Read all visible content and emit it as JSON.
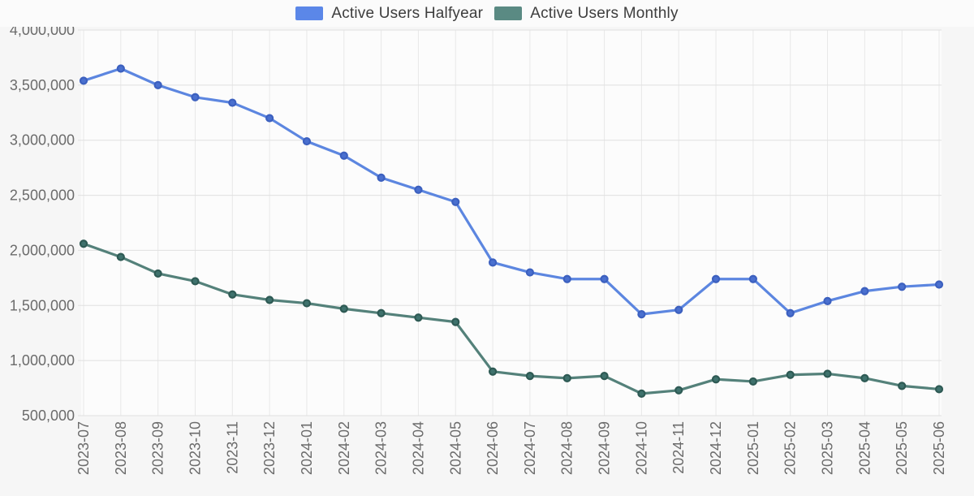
{
  "legend": {
    "items": [
      {
        "label": "Active Users Halfyear",
        "color": "#5b87e8"
      },
      {
        "label": "Active Users Monthly",
        "color": "#5a8a83"
      }
    ]
  },
  "chart_data": {
    "type": "line",
    "title": "",
    "xlabel": "",
    "ylabel": "",
    "grid": true,
    "legend_position": "top",
    "x_label_rotation": -90,
    "ylim": [
      500000,
      4000000
    ],
    "yticks": [
      {
        "value": 500000,
        "label": "500,000"
      },
      {
        "value": 1000000,
        "label": "1,000,000"
      },
      {
        "value": 1500000,
        "label": "1,500,000"
      },
      {
        "value": 2000000,
        "label": "2,000,000"
      },
      {
        "value": 2500000,
        "label": "2,500,000"
      },
      {
        "value": 3000000,
        "label": "3,000,000"
      },
      {
        "value": 3500000,
        "label": "3,500,000"
      },
      {
        "value": 4000000,
        "label": "4,000,000"
      }
    ],
    "x": [
      "2023-07",
      "2023-08",
      "2023-09",
      "2023-10",
      "2023-11",
      "2023-12",
      "2024-01",
      "2024-02",
      "2024-03",
      "2024-04",
      "2024-05",
      "2024-06",
      "2024-07",
      "2024-08",
      "2024-09",
      "2024-10",
      "2024-11",
      "2024-12",
      "2025-01",
      "2025-02",
      "2025-03",
      "2025-04",
      "2025-05",
      "2025-06"
    ],
    "series": [
      {
        "name": "Active Users Halfyear",
        "line_color": "#5c86e0",
        "marker_fill": "#4a70cf",
        "marker_stroke": "#3c60bf",
        "values": [
          3540000,
          3650000,
          3500000,
          3390000,
          3340000,
          3200000,
          2990000,
          2860000,
          2660000,
          2550000,
          2440000,
          1890000,
          1800000,
          1740000,
          1740000,
          1420000,
          1460000,
          1740000,
          1740000,
          1430000,
          1540000,
          1630000,
          1670000,
          1690000
        ]
      },
      {
        "name": "Active Users Monthly",
        "line_color": "#54817a",
        "marker_fill": "#3f726d",
        "marker_stroke": "#2e5a54",
        "values": [
          2060000,
          1940000,
          1790000,
          1720000,
          1600000,
          1550000,
          1520000,
          1470000,
          1430000,
          1390000,
          1350000,
          900000,
          860000,
          840000,
          860000,
          700000,
          730000,
          830000,
          810000,
          870000,
          880000,
          840000,
          770000,
          740000
        ]
      }
    ]
  },
  "colors": {
    "page_bg": "#f6f6f6",
    "plot_bg": "#fcfcfc",
    "grid_h": "#e0e0e0",
    "grid_v": "#e8e8e8",
    "tick_text": "#6b6b6b",
    "legend_text": "#3d3d3d"
  }
}
